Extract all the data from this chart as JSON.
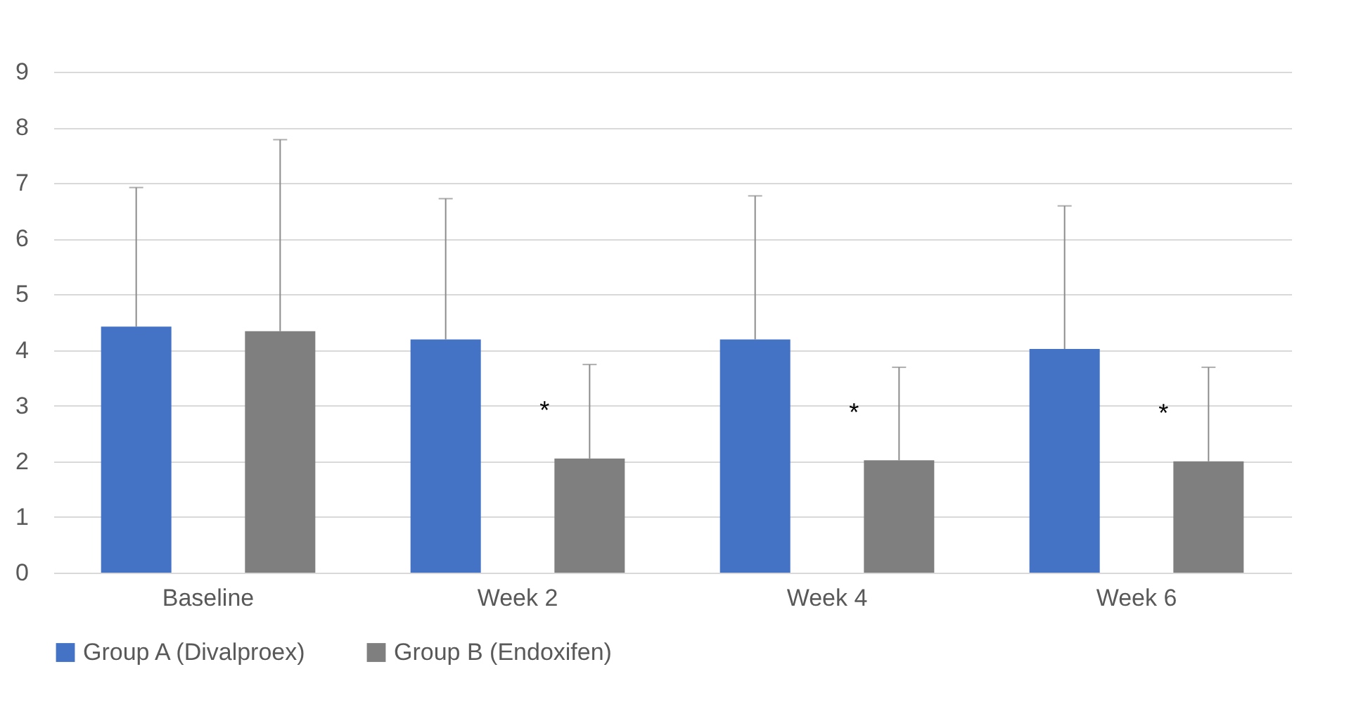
{
  "chart_data": {
    "type": "bar",
    "categories": [
      "Baseline",
      "Week 2",
      "Week 4",
      "Week 6"
    ],
    "series": [
      {
        "name": "Group A (Divalproex)",
        "color": "#4472c4",
        "values": [
          4.42,
          4.19,
          4.19,
          4.02
        ],
        "errors": [
          [
            4.42,
            6.92
          ],
          [
            4.19,
            6.72
          ],
          [
            4.19,
            6.77
          ],
          [
            4.02,
            6.59
          ]
        ]
      },
      {
        "name": "Group B (Endoxifen)",
        "color": "#7f7f7f",
        "values": [
          4.34,
          2.05,
          2.02,
          2.0
        ],
        "errors": [
          [
            4.34,
            7.78
          ],
          [
            2.05,
            3.74
          ],
          [
            2.02,
            3.69
          ],
          [
            2.0,
            3.69
          ]
        ]
      }
    ],
    "annotations": [
      "*",
      "*",
      "*"
    ],
    "ylim": [
      0,
      9
    ],
    "yticks": [
      0,
      1,
      2,
      3,
      4,
      5,
      6,
      7,
      8,
      9
    ],
    "grid": "y",
    "legend": "bottom"
  }
}
